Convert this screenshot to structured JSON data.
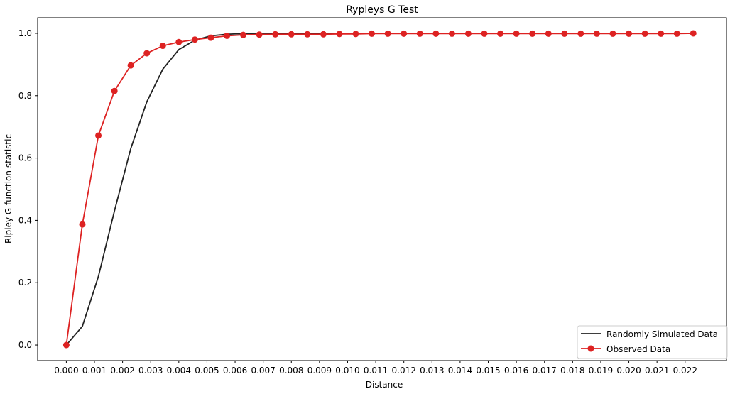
{
  "chart_data": {
    "type": "line",
    "title": "Rypleys G Test",
    "xlabel": "Distance",
    "ylabel": "Ripley G function statistic",
    "xlim": [
      -0.00102,
      0.02347
    ],
    "ylim": [
      -0.05,
      1.05
    ],
    "x_ticks": [
      "0.000",
      "0.001",
      "0.002",
      "0.003",
      "0.004",
      "0.005",
      "0.006",
      "0.007",
      "0.008",
      "0.009",
      "0.010",
      "0.011",
      "0.012",
      "0.013",
      "0.014",
      "0.015",
      "0.016",
      "0.017",
      "0.018",
      "0.019",
      "0.020",
      "0.021",
      "0.022"
    ],
    "x_tick_values": [
      0.0,
      0.001,
      0.002,
      0.003,
      0.004,
      0.005,
      0.006,
      0.007,
      0.008,
      0.009,
      0.01,
      0.011,
      0.012,
      0.013,
      0.014,
      0.015,
      0.016,
      0.017,
      0.018,
      0.019,
      0.02,
      0.021,
      0.022
    ],
    "y_ticks": [
      "0.0",
      "0.2",
      "0.4",
      "0.6",
      "0.8",
      "1.0"
    ],
    "y_tick_values": [
      0.0,
      0.2,
      0.4,
      0.6,
      0.8,
      1.0
    ],
    "grid": false,
    "legend_position": "bottom-right",
    "series": [
      {
        "name": "Randomly Simulated Data",
        "color": "#222222",
        "marker": "none",
        "x": [
          0.0,
          0.00057,
          0.00114,
          0.00171,
          0.00229,
          0.00286,
          0.00343,
          0.004,
          0.00457,
          0.00514,
          0.00571,
          0.00629,
          0.00686,
          0.00743,
          0.008,
          0.00857,
          0.00914,
          0.00971,
          0.01029,
          0.01086,
          0.01143,
          0.012,
          0.01257,
          0.01314,
          0.01371,
          0.01429,
          0.01486,
          0.01543,
          0.016,
          0.01657,
          0.01714,
          0.01771,
          0.01829,
          0.01886,
          0.01943,
          0.02,
          0.02057,
          0.02114,
          0.02171,
          0.02229
        ],
        "y": [
          0.0,
          0.06,
          0.22,
          0.43,
          0.63,
          0.78,
          0.885,
          0.948,
          0.978,
          0.992,
          0.997,
          0.999,
          1.0,
          1.0,
          1.0,
          1.0,
          1.0,
          1.0,
          1.0,
          1.0,
          1.0,
          1.0,
          1.0,
          1.0,
          1.0,
          1.0,
          1.0,
          1.0,
          1.0,
          1.0,
          1.0,
          1.0,
          1.0,
          1.0,
          1.0,
          1.0,
          1.0,
          1.0,
          1.0,
          1.0
        ]
      },
      {
        "name": "Observed Data",
        "color": "#dd2222",
        "marker": "circle",
        "x": [
          0.0,
          0.00057,
          0.00114,
          0.00171,
          0.00229,
          0.00286,
          0.00343,
          0.004,
          0.00457,
          0.00514,
          0.00571,
          0.00629,
          0.00686,
          0.00743,
          0.008,
          0.00857,
          0.00914,
          0.00971,
          0.01029,
          0.01086,
          0.01143,
          0.012,
          0.01257,
          0.01314,
          0.01371,
          0.01429,
          0.01486,
          0.01543,
          0.016,
          0.01657,
          0.01714,
          0.01771,
          0.01829,
          0.01886,
          0.01943,
          0.02,
          0.02057,
          0.02114,
          0.02171,
          0.02229
        ],
        "y": [
          0.0,
          0.387,
          0.672,
          0.815,
          0.897,
          0.936,
          0.96,
          0.972,
          0.98,
          0.986,
          0.992,
          0.995,
          0.996,
          0.997,
          0.997,
          0.997,
          0.997,
          0.998,
          0.998,
          0.999,
          0.999,
          0.999,
          0.999,
          0.999,
          0.999,
          0.999,
          0.999,
          0.999,
          0.999,
          0.999,
          0.999,
          0.999,
          0.999,
          0.999,
          0.999,
          0.999,
          0.999,
          0.999,
          0.999,
          1.0
        ]
      }
    ]
  }
}
